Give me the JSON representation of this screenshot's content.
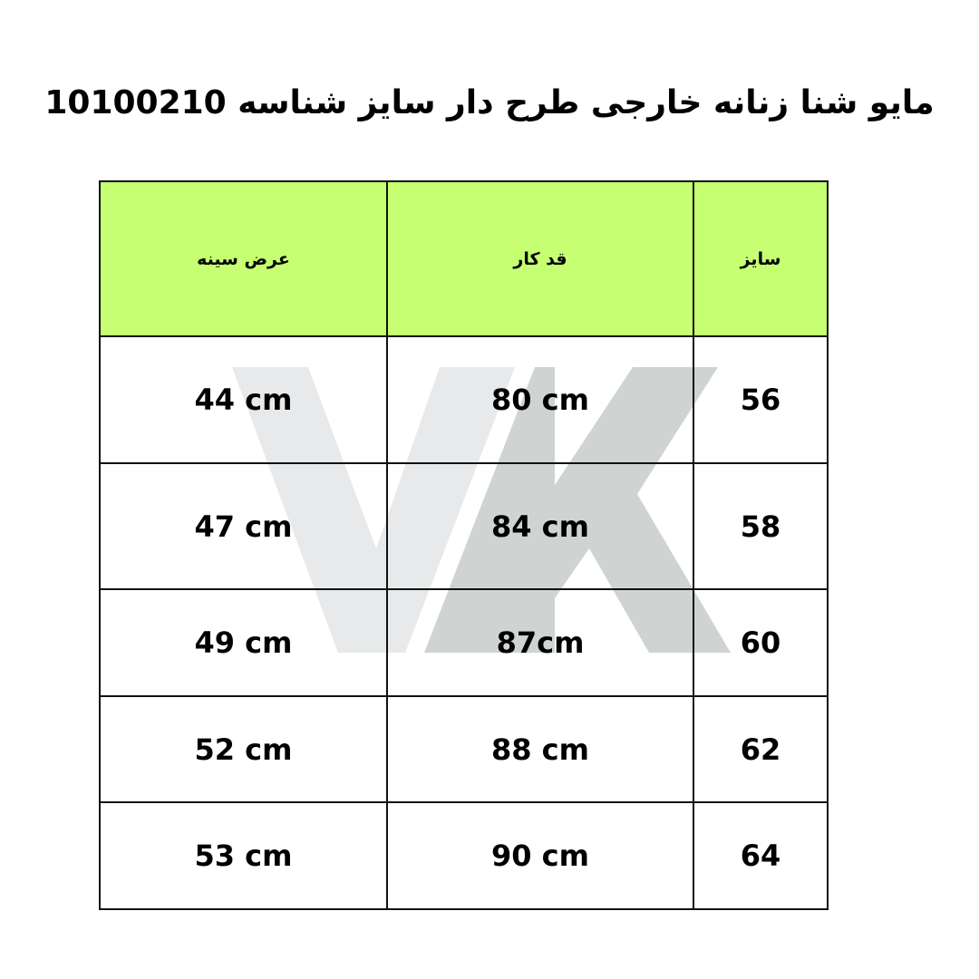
{
  "title": "مایو شنا زنانه خارجی طرح دار سایز شناسه 10100210",
  "watermark": {
    "text": "VK",
    "colors": {
      "v": "#e8e9ea",
      "k": "#cfd4d2"
    }
  },
  "colors": {
    "header_bg": "#c6ff72",
    "border": "#111111"
  },
  "table": {
    "headers": [
      "عرض سینه",
      "قد کار",
      "سایز"
    ],
    "rows": [
      [
        "44 cm",
        "80 cm",
        "56"
      ],
      [
        "47 cm",
        "84 cm",
        "58"
      ],
      [
        "49 cm",
        "87cm",
        "60"
      ],
      [
        "52 cm",
        "88 cm",
        "62"
      ],
      [
        "53 cm",
        "90 cm",
        "64"
      ]
    ]
  }
}
